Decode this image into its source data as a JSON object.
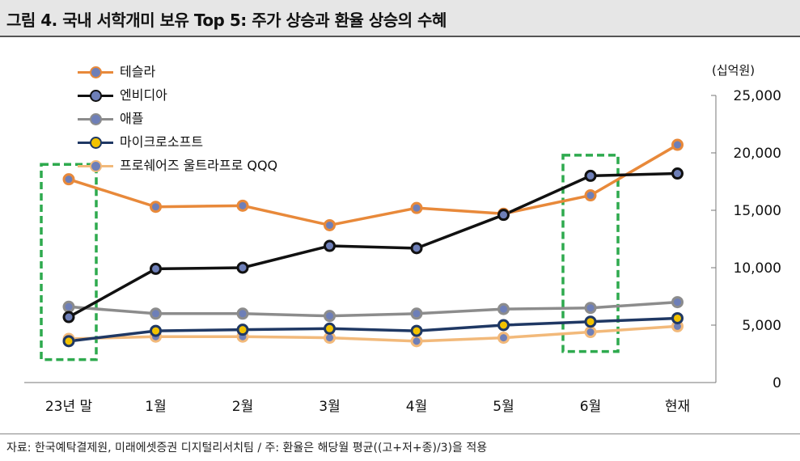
{
  "header": {
    "title": "그림 4. 국내 서학개미 보유 Top 5: 주가 상승과 환율 상승의 수혜"
  },
  "footer": {
    "source": "자료: 한국예탁결제원, 미래에셋증권 디지털리서치팀 / 주: 환율은 해당월 평균((고+저+종)/3)을 적용"
  },
  "colors": {
    "tesla": "#e8893a",
    "nvidia": "#111111",
    "apple": "#8c8c8c",
    "microsoft": "#1f3864",
    "qqq": "#f2b97a",
    "highlight_box": "#2eaa4e",
    "marker_center": "#6e7fb8",
    "msft_center": "#f2c200"
  },
  "chart_data": {
    "type": "line",
    "title": "그림 4. 국내 서학개미 보유 Top 5: 주가 상승과 환율 상승의 수혜",
    "ylabel": "(십억원)",
    "xlabel": "",
    "categories": [
      "23년 말",
      "1월",
      "2월",
      "3월",
      "4월",
      "5월",
      "6월",
      "현재"
    ],
    "ylim": [
      0,
      25000
    ],
    "yticks": [
      0,
      5000,
      10000,
      15000,
      20000,
      25000
    ],
    "ytick_labels": [
      "0",
      "5,000",
      "10,000",
      "15,000",
      "20,000",
      "25,000"
    ],
    "grid": false,
    "legend_position": "top-left",
    "series": [
      {
        "key": "tesla",
        "name": "테슬라",
        "values": [
          17700,
          15300,
          15400,
          13700,
          15200,
          14700,
          16300,
          20700
        ]
      },
      {
        "key": "nvidia",
        "name": "엔비디아",
        "values": [
          5700,
          9900,
          10000,
          11900,
          11700,
          14600,
          18000,
          18200
        ]
      },
      {
        "key": "apple",
        "name": "애플",
        "values": [
          6600,
          6000,
          6000,
          5800,
          6000,
          6400,
          6500,
          7000
        ]
      },
      {
        "key": "microsoft",
        "name": "마이크로소프트",
        "values": [
          3600,
          4500,
          4600,
          4700,
          4500,
          5000,
          5300,
          5600
        ]
      },
      {
        "key": "qqq",
        "name": "프로쉐어즈 울트라프로 QQQ",
        "values": [
          3800,
          4000,
          4000,
          3900,
          3600,
          3900,
          4400,
          4900
        ]
      }
    ],
    "highlights": [
      {
        "category_index": 0,
        "y_range": [
          2000,
          19000
        ]
      },
      {
        "category_index": 6,
        "y_range": [
          2700,
          19800
        ]
      }
    ]
  }
}
